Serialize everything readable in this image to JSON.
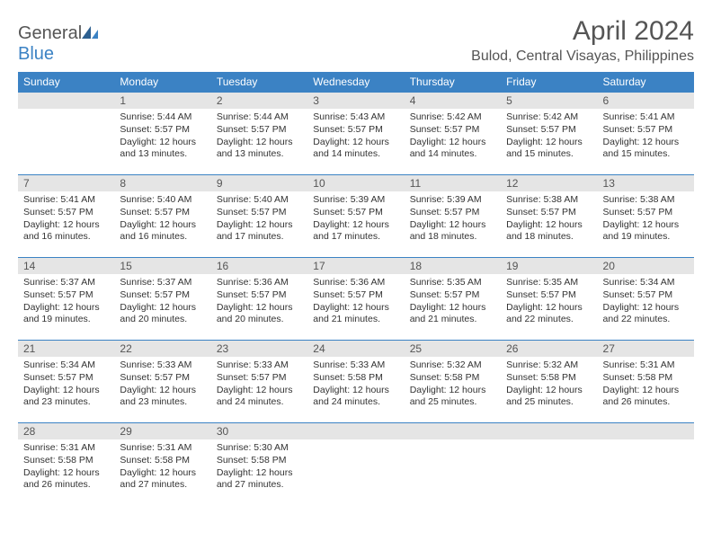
{
  "logo": {
    "general": "General",
    "blue": "Blue"
  },
  "header": {
    "month_title": "April 2024",
    "location": "Bulod, Central Visayas, Philippines"
  },
  "colors": {
    "header_bg": "#3b82c4",
    "header_text": "#ffffff",
    "daynum_bg": "#e5e5e5",
    "border": "#3b82c4",
    "text": "#333333",
    "page_bg": "#ffffff"
  },
  "fonts": {
    "month_title_pt": 30,
    "location_pt": 16,
    "dayheader_pt": 12,
    "daynum_pt": 12,
    "body_pt": 10.5
  },
  "weekdays": [
    "Sunday",
    "Monday",
    "Tuesday",
    "Wednesday",
    "Thursday",
    "Friday",
    "Saturday"
  ],
  "weeks": [
    [
      null,
      {
        "n": "1",
        "sr": "5:44 AM",
        "ss": "5:57 PM",
        "dl": "12 hours and 13 minutes."
      },
      {
        "n": "2",
        "sr": "5:44 AM",
        "ss": "5:57 PM",
        "dl": "12 hours and 13 minutes."
      },
      {
        "n": "3",
        "sr": "5:43 AM",
        "ss": "5:57 PM",
        "dl": "12 hours and 14 minutes."
      },
      {
        "n": "4",
        "sr": "5:42 AM",
        "ss": "5:57 PM",
        "dl": "12 hours and 14 minutes."
      },
      {
        "n": "5",
        "sr": "5:42 AM",
        "ss": "5:57 PM",
        "dl": "12 hours and 15 minutes."
      },
      {
        "n": "6",
        "sr": "5:41 AM",
        "ss": "5:57 PM",
        "dl": "12 hours and 15 minutes."
      }
    ],
    [
      {
        "n": "7",
        "sr": "5:41 AM",
        "ss": "5:57 PM",
        "dl": "12 hours and 16 minutes."
      },
      {
        "n": "8",
        "sr": "5:40 AM",
        "ss": "5:57 PM",
        "dl": "12 hours and 16 minutes."
      },
      {
        "n": "9",
        "sr": "5:40 AM",
        "ss": "5:57 PM",
        "dl": "12 hours and 17 minutes."
      },
      {
        "n": "10",
        "sr": "5:39 AM",
        "ss": "5:57 PM",
        "dl": "12 hours and 17 minutes."
      },
      {
        "n": "11",
        "sr": "5:39 AM",
        "ss": "5:57 PM",
        "dl": "12 hours and 18 minutes."
      },
      {
        "n": "12",
        "sr": "5:38 AM",
        "ss": "5:57 PM",
        "dl": "12 hours and 18 minutes."
      },
      {
        "n": "13",
        "sr": "5:38 AM",
        "ss": "5:57 PM",
        "dl": "12 hours and 19 minutes."
      }
    ],
    [
      {
        "n": "14",
        "sr": "5:37 AM",
        "ss": "5:57 PM",
        "dl": "12 hours and 19 minutes."
      },
      {
        "n": "15",
        "sr": "5:37 AM",
        "ss": "5:57 PM",
        "dl": "12 hours and 20 minutes."
      },
      {
        "n": "16",
        "sr": "5:36 AM",
        "ss": "5:57 PM",
        "dl": "12 hours and 20 minutes."
      },
      {
        "n": "17",
        "sr": "5:36 AM",
        "ss": "5:57 PM",
        "dl": "12 hours and 21 minutes."
      },
      {
        "n": "18",
        "sr": "5:35 AM",
        "ss": "5:57 PM",
        "dl": "12 hours and 21 minutes."
      },
      {
        "n": "19",
        "sr": "5:35 AM",
        "ss": "5:57 PM",
        "dl": "12 hours and 22 minutes."
      },
      {
        "n": "20",
        "sr": "5:34 AM",
        "ss": "5:57 PM",
        "dl": "12 hours and 22 minutes."
      }
    ],
    [
      {
        "n": "21",
        "sr": "5:34 AM",
        "ss": "5:57 PM",
        "dl": "12 hours and 23 minutes."
      },
      {
        "n": "22",
        "sr": "5:33 AM",
        "ss": "5:57 PM",
        "dl": "12 hours and 23 minutes."
      },
      {
        "n": "23",
        "sr": "5:33 AM",
        "ss": "5:57 PM",
        "dl": "12 hours and 24 minutes."
      },
      {
        "n": "24",
        "sr": "5:33 AM",
        "ss": "5:58 PM",
        "dl": "12 hours and 24 minutes."
      },
      {
        "n": "25",
        "sr": "5:32 AM",
        "ss": "5:58 PM",
        "dl": "12 hours and 25 minutes."
      },
      {
        "n": "26",
        "sr": "5:32 AM",
        "ss": "5:58 PM",
        "dl": "12 hours and 25 minutes."
      },
      {
        "n": "27",
        "sr": "5:31 AM",
        "ss": "5:58 PM",
        "dl": "12 hours and 26 minutes."
      }
    ],
    [
      {
        "n": "28",
        "sr": "5:31 AM",
        "ss": "5:58 PM",
        "dl": "12 hours and 26 minutes."
      },
      {
        "n": "29",
        "sr": "5:31 AM",
        "ss": "5:58 PM",
        "dl": "12 hours and 27 minutes."
      },
      {
        "n": "30",
        "sr": "5:30 AM",
        "ss": "5:58 PM",
        "dl": "12 hours and 27 minutes."
      },
      null,
      null,
      null,
      null
    ]
  ],
  "labels": {
    "sunrise": "Sunrise:",
    "sunset": "Sunset:",
    "daylight": "Daylight:"
  }
}
